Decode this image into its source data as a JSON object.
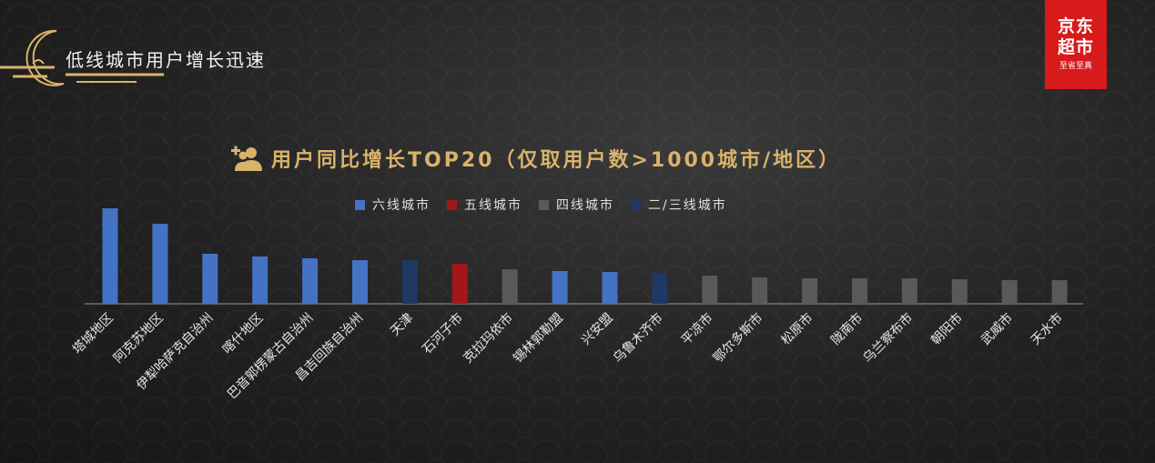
{
  "header": {
    "title": "低线城市用户增长迅速"
  },
  "logo": {
    "line1": "京东",
    "line2": "超市",
    "tagline": "至省至真"
  },
  "chart_data": {
    "type": "bar",
    "title": "用户同比增长TOP20（仅取用户数>1000城市/地区）",
    "legend": [
      {
        "name": "六线城市",
        "color": "#4472c4"
      },
      {
        "name": "五线城市",
        "color": "#a5161a"
      },
      {
        "name": "四线城市",
        "color": "#595959"
      },
      {
        "name": "二/三线城市",
        "color": "#1f3864"
      }
    ],
    "categories": [
      "塔城地区",
      "阿克苏地区",
      "伊犁哈萨克自治州",
      "喀什地区",
      "巴音郭楞蒙古自治州",
      "昌吉回族自治州",
      "天津",
      "石河子市",
      "克拉玛依市",
      "锡林郭勒盟",
      "兴安盟",
      "乌鲁木齐市",
      "平凉市",
      "鄂尔多斯市",
      "松原市",
      "陇南市",
      "乌兰察布市",
      "朝阳市",
      "武威市",
      "天水市"
    ],
    "tiers": [
      "六线城市",
      "六线城市",
      "六线城市",
      "六线城市",
      "六线城市",
      "六线城市",
      "二/三线城市",
      "五线城市",
      "四线城市",
      "六线城市",
      "六线城市",
      "二/三线城市",
      "四线城市",
      "四线城市",
      "四线城市",
      "四线城市",
      "四线城市",
      "四线城市",
      "四线城市",
      "四线城市"
    ],
    "values": [
      105,
      88,
      55,
      52,
      50,
      48,
      48,
      44,
      38,
      36,
      35,
      34,
      31,
      29,
      28,
      28,
      28,
      27,
      26,
      26
    ],
    "ylim": [
      0,
      110
    ],
    "grid": false,
    "legend_position": "top-center"
  }
}
